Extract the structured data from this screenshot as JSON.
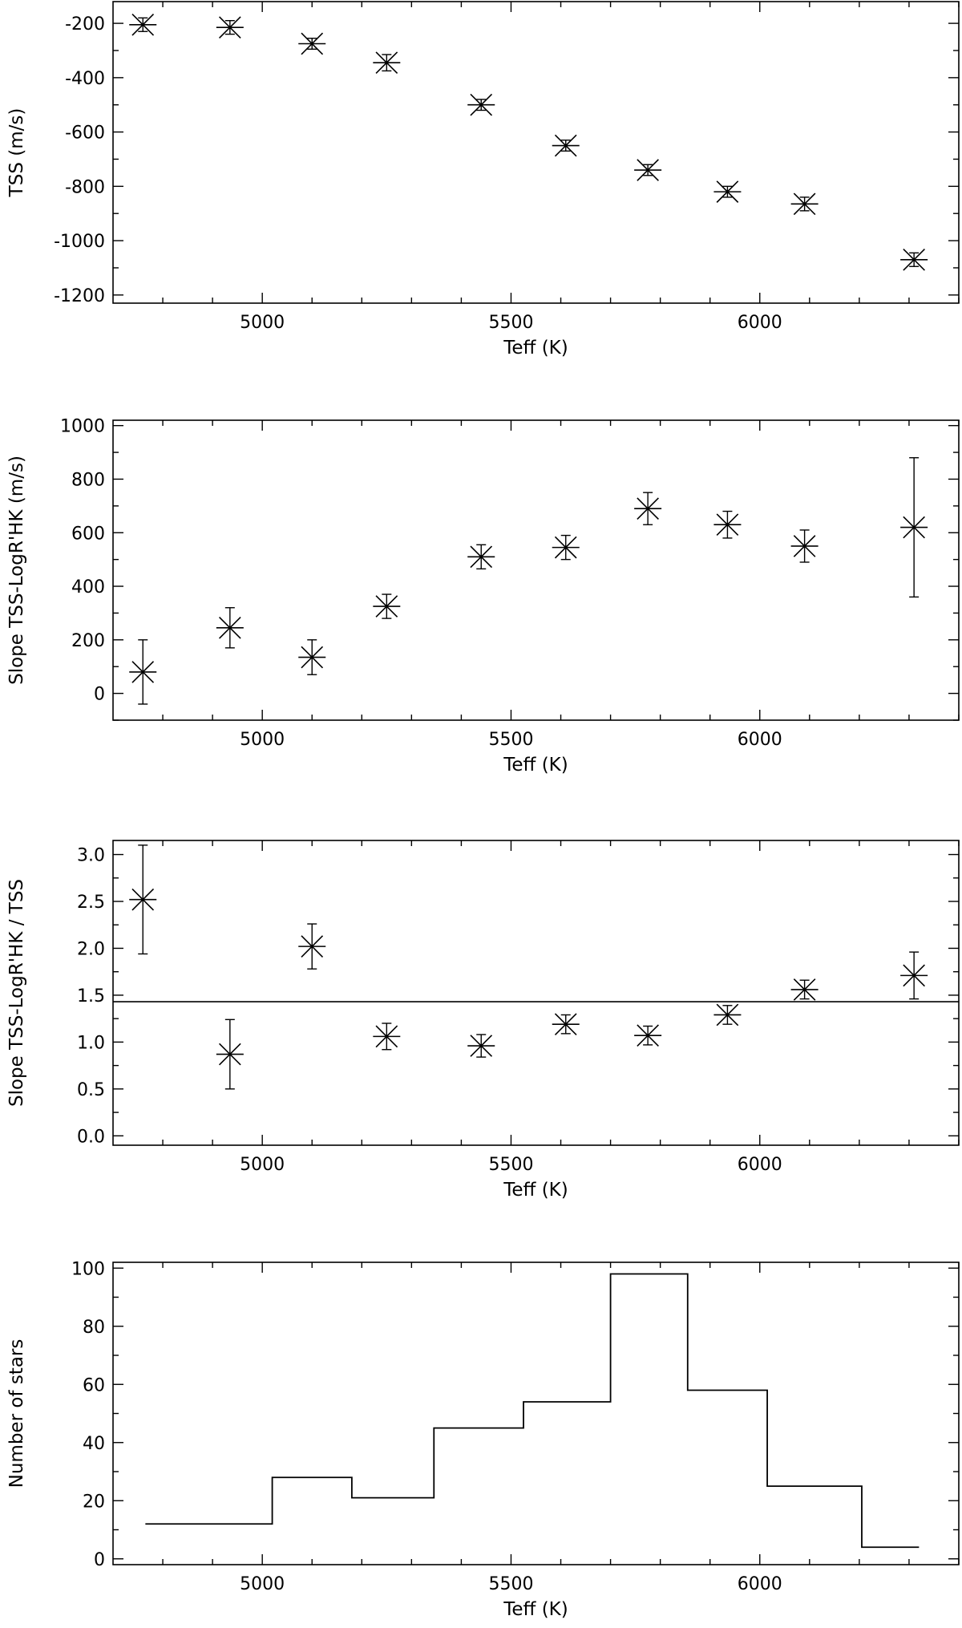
{
  "chart_data": [
    {
      "type": "scatter",
      "xlabel": "Teff (K)",
      "ylabel": "TSS (m/s)",
      "xlim": [
        4700,
        6400
      ],
      "ylim": [
        -1230,
        -120
      ],
      "xticks": [
        5000,
        5500,
        6000
      ],
      "yticks": [
        -200,
        -400,
        -600,
        -800,
        -1000,
        -1200
      ],
      "x": [
        4760,
        4935,
        5100,
        5250,
        5440,
        5610,
        5775,
        5935,
        6090,
        6310
      ],
      "y": [
        -205,
        -215,
        -275,
        -345,
        -500,
        -650,
        -740,
        -820,
        -865,
        -1070
      ],
      "yerr": [
        25,
        25,
        20,
        30,
        20,
        20,
        20,
        20,
        25,
        25
      ]
    },
    {
      "type": "scatter",
      "xlabel": "Teff (K)",
      "ylabel": "Slope TSS-LogR'HK (m/s)",
      "xlim": [
        4700,
        6400
      ],
      "ylim": [
        -100,
        1020
      ],
      "xticks": [
        5000,
        5500,
        6000
      ],
      "yticks": [
        0,
        200,
        400,
        600,
        800,
        1000
      ],
      "x": [
        4760,
        4935,
        5100,
        5250,
        5440,
        5610,
        5775,
        5935,
        6090,
        6310
      ],
      "y": [
        80,
        245,
        135,
        325,
        510,
        545,
        690,
        630,
        550,
        620
      ],
      "yerr": [
        120,
        75,
        65,
        45,
        45,
        45,
        60,
        50,
        60,
        260
      ]
    },
    {
      "type": "scatter",
      "xlabel": "Teff (K)",
      "ylabel": "Slope TSS-LogR'HK / TSS",
      "xlim": [
        4700,
        6400
      ],
      "ylim": [
        -0.1,
        3.15
      ],
      "xticks": [
        5000,
        5500,
        6000
      ],
      "yticks": [
        0.0,
        0.5,
        1.0,
        1.5,
        2.0,
        2.5,
        3.0
      ],
      "ytick_labels": [
        "0.0",
        "0.5",
        "1.0",
        "1.5",
        "2.0",
        "2.5",
        "3.0"
      ],
      "reference_line_y": 1.43,
      "x": [
        4760,
        4935,
        5100,
        5250,
        5440,
        5610,
        5775,
        5935,
        6090,
        6310
      ],
      "y": [
        2.52,
        0.87,
        2.02,
        1.06,
        0.96,
        1.19,
        1.07,
        1.29,
        1.56,
        1.71
      ],
      "yerr": [
        0.58,
        0.37,
        0.24,
        0.14,
        0.12,
        0.1,
        0.1,
        0.1,
        0.1,
        0.25
      ]
    },
    {
      "type": "histogram",
      "xlabel": "Teff (K)",
      "ylabel": "Number of stars",
      "xlim": [
        4700,
        6400
      ],
      "ylim": [
        -2,
        102
      ],
      "xticks": [
        5000,
        5500,
        6000
      ],
      "yticks": [
        0,
        20,
        40,
        60,
        80,
        100
      ],
      "bin_edges": [
        4765,
        5020,
        5180,
        5345,
        5525,
        5700,
        5855,
        6015,
        6205,
        6320
      ],
      "counts": [
        12,
        28,
        21,
        45,
        54,
        98,
        58,
        25,
        4
      ]
    }
  ]
}
